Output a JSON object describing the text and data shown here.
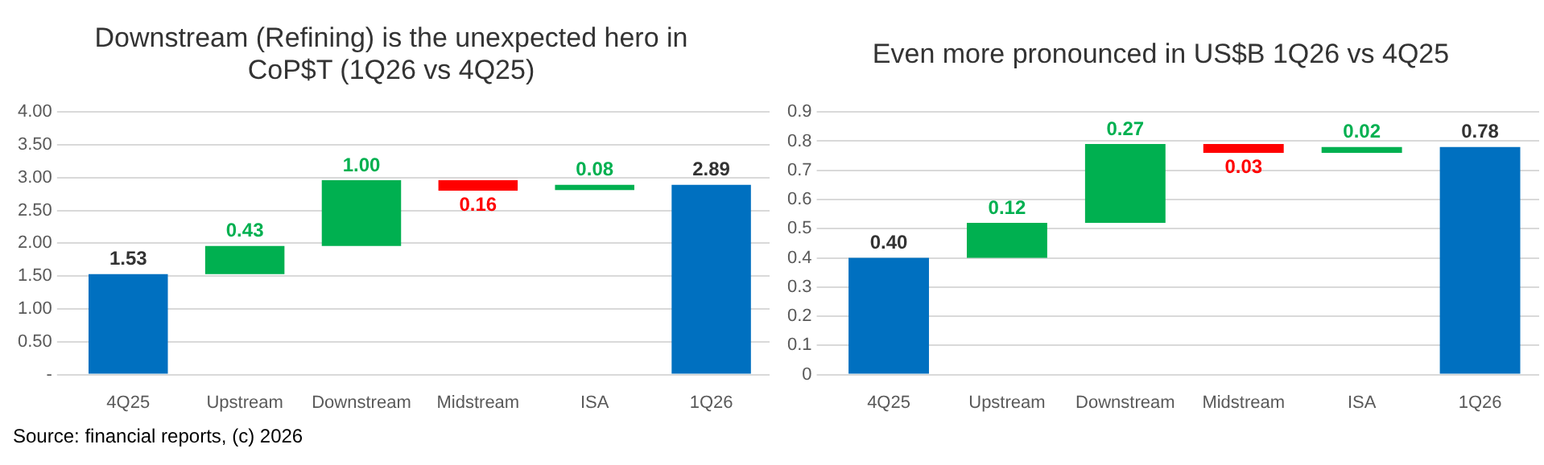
{
  "chart_data": [
    {
      "type": "bar",
      "title": "Downstream (Refining) is the unexpected hero in CoP$T (1Q26 vs 4Q25)",
      "categories": [
        "4Q25",
        "Upstream",
        "Downstream",
        "Midstream",
        "ISA",
        "1Q26"
      ],
      "values": [
        1.53,
        0.43,
        1.0,
        -0.16,
        0.08,
        2.89
      ],
      "base": [
        0,
        1.53,
        1.96,
        2.96,
        2.81,
        0
      ],
      "colors": [
        "#0070c0",
        "#00b050",
        "#00b050",
        "#ff0000",
        "#00b050",
        "#0070c0"
      ],
      "value_labels": [
        "1.53",
        "0.43",
        "1.00",
        "0.16",
        "0.08",
        "2.89"
      ],
      "ylim": [
        0,
        4
      ],
      "yticks": [
        {
          "value": 0,
          "label": "-"
        },
        {
          "value": 0.5,
          "label": "0.50"
        },
        {
          "value": 1,
          "label": "1.00"
        },
        {
          "value": 1.5,
          "label": "1.50"
        },
        {
          "value": 2,
          "label": "2.00"
        },
        {
          "value": 2.5,
          "label": "2.50"
        },
        {
          "value": 3,
          "label": "3.00"
        },
        {
          "value": 3.5,
          "label": "3.50"
        },
        {
          "value": 4,
          "label": "4.00"
        }
      ],
      "grid": "y",
      "legend": false,
      "annotations": [
        "Source: financial reports, (c) 2026"
      ]
    },
    {
      "type": "bar",
      "title": "Even more pronounced in US$B 1Q26 vs 4Q25",
      "categories": [
        "4Q25",
        "Upstream",
        "Downstream",
        "Midstream",
        "ISA",
        "1Q26"
      ],
      "values": [
        0.4,
        0.12,
        0.27,
        -0.03,
        0.02,
        0.78
      ],
      "base": [
        0,
        0.4,
        0.52,
        0.79,
        0.76,
        0
      ],
      "colors": [
        "#0070c0",
        "#00b050",
        "#00b050",
        "#ff0000",
        "#00b050",
        "#0070c0"
      ],
      "value_labels": [
        "0.40",
        "0.12",
        "0.27",
        "0.03",
        "0.02",
        "0.78"
      ],
      "ylim": [
        0,
        0.9
      ],
      "yticks": [
        0,
        0.1,
        0.2,
        0.3,
        0.4,
        0.5,
        0.6,
        0.7,
        0.8,
        0.9
      ],
      "grid": "y",
      "legend": false
    }
  ]
}
